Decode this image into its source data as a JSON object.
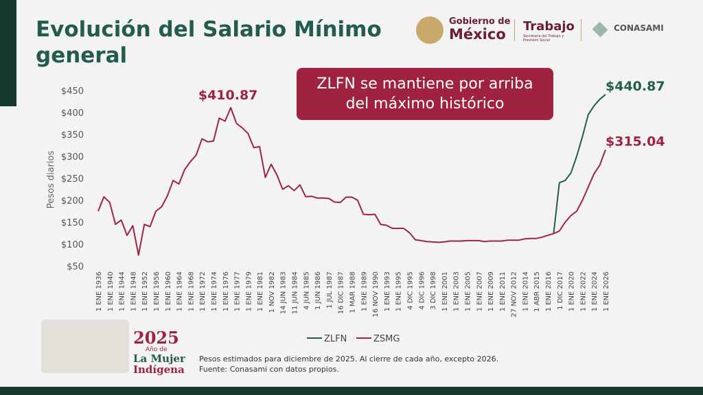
{
  "header": {
    "title": "Evolución del Salario Mínimo general",
    "logos": {
      "gobierno_small": "Gobierno de",
      "gobierno_big": "México",
      "trabajo": "Trabajo",
      "trabajo_sub": "Secretaría del Trabajo y Previsión Social",
      "conasami": "CONASAMI"
    }
  },
  "badge": {
    "year": "2025",
    "line1": "Año de",
    "line2": "La Mujer",
    "line3": "Indígena"
  },
  "footer": {
    "note": "Pesos estimados para diciembre de 2025. Al cierre de cada año, excepto 2026.",
    "source": "Fuente: Conasami con datos propios."
  },
  "chart_data": {
    "type": "line",
    "annotation": [
      "ZLFN se mantiene por arriba",
      "del máximo histórico"
    ],
    "ylabel": "Pesos diarios",
    "ylim": [
      50,
      450
    ],
    "yticks": [
      {
        "value": 50,
        "label": "$50"
      },
      {
        "value": 100,
        "label": "$100"
      },
      {
        "value": 150,
        "label": "$150"
      },
      {
        "value": 200,
        "label": "$200"
      },
      {
        "value": 250,
        "label": "$250"
      },
      {
        "value": 300,
        "label": "$300"
      },
      {
        "value": 350,
        "label": "$350"
      },
      {
        "value": 400,
        "label": "$400"
      },
      {
        "value": 450,
        "label": "$450"
      }
    ],
    "legend": "bottom",
    "categories": [
      "1 ENE 1936",
      null,
      "1 ENE 1940",
      null,
      "1 ENE 1944",
      null,
      "1 ENE 1948",
      null,
      "1 ENE 1952",
      null,
      "1 ENE 1956",
      null,
      "1 ENE 1960",
      null,
      "1 ENE 1964",
      null,
      "1 ENE 1968",
      null,
      "1 ENE 1972",
      null,
      "1 ENE 1974",
      null,
      "1 ENE 1976",
      null,
      "1 ENE 1977",
      null,
      "1 ENE 1979",
      null,
      "1 ENE 1981",
      null,
      "1 NOV 1982",
      null,
      "14 JUN 1983",
      null,
      "11 JUN 1984",
      null,
      "4 JUN 1985",
      null,
      "1 JUN 1986",
      null,
      "1 JUL 1987",
      null,
      "16 DIC 1987",
      null,
      "1 MAR 1988",
      null,
      "1 ENE 1989",
      null,
      "16 NOV 1990",
      null,
      "1 ENE 1993",
      null,
      "1 ENE 1995",
      null,
      "4 DIC 1995",
      null,
      "4 DIC 1996",
      null,
      "3 DIC 1998",
      null,
      "1 ENE 2001",
      null,
      "1 ENE 2003",
      null,
      "1 ENE 2005",
      null,
      "1 ENE 2007",
      null,
      "1 ENE 2009",
      null,
      "1 ENE 2011",
      null,
      "27 NOV 2012",
      null,
      "1 ENE 2014",
      null,
      "1 ABR 2015",
      null,
      "1 ENE 2016",
      null,
      "1 DIC 2017",
      null,
      "1 ENE 2020",
      null,
      "1 ENE 2022",
      null,
      "1 ENE 2024",
      null,
      "1 ENE 2026"
    ],
    "series": [
      {
        "name": "ZLFN",
        "color": "#235b4e",
        "values": [
          null,
          null,
          null,
          null,
          null,
          null,
          null,
          null,
          null,
          null,
          null,
          null,
          null,
          null,
          null,
          null,
          null,
          null,
          null,
          null,
          null,
          null,
          null,
          null,
          null,
          null,
          null,
          null,
          null,
          null,
          null,
          null,
          null,
          null,
          null,
          null,
          null,
          null,
          null,
          null,
          null,
          null,
          null,
          null,
          null,
          null,
          null,
          null,
          null,
          null,
          null,
          null,
          null,
          null,
          null,
          null,
          null,
          null,
          null,
          null,
          null,
          null,
          null,
          null,
          null,
          null,
          null,
          null,
          null,
          null,
          null,
          null,
          null,
          null,
          null,
          null,
          null,
          null,
          null,
          124,
          240,
          245,
          262,
          300,
          345,
          395,
          415,
          430,
          440.87
        ],
        "value_labels": [
          null,
          null,
          null,
          null,
          null,
          null,
          null,
          null,
          null,
          null,
          null,
          null,
          null,
          null,
          null,
          null,
          null,
          null,
          null,
          null,
          null,
          null,
          null,
          null,
          null,
          null,
          null,
          null,
          null,
          null,
          null,
          null,
          null,
          null,
          null,
          null,
          null,
          null,
          null,
          null,
          null,
          null,
          null,
          null,
          null,
          null,
          null,
          null,
          null,
          null,
          null,
          null,
          null,
          null,
          null,
          null,
          null,
          null,
          null,
          null,
          null,
          null,
          null,
          null,
          null,
          null,
          null,
          null,
          null,
          null,
          null,
          null,
          null,
          null,
          null,
          null,
          null,
          null,
          null,
          null,
          null,
          null,
          null,
          null,
          null,
          null,
          null,
          null,
          "$440.87"
        ]
      },
      {
        "name": "ZSMG",
        "color": "#9f2241",
        "values": [
          175,
          208,
          195,
          145,
          155,
          120,
          142,
          75,
          145,
          140,
          175,
          185,
          210,
          245,
          237,
          270,
          288,
          303,
          340,
          333,
          335,
          387,
          380,
          410.87,
          375,
          365,
          352,
          320,
          322,
          252,
          282,
          258,
          225,
          233,
          222,
          235,
          208,
          209,
          205,
          205,
          204,
          196,
          195,
          207,
          207,
          200,
          168,
          167,
          168,
          145,
          143,
          136,
          136,
          136,
          126,
          110,
          108,
          106,
          105,
          104,
          105,
          107,
          107,
          107,
          108,
          108,
          108,
          106,
          107,
          107,
          107,
          109,
          109,
          109,
          112,
          113,
          113,
          116,
          120,
          124,
          130,
          150,
          165,
          175,
          200,
          230,
          260,
          280,
          315.04
        ],
        "value_labels": [
          null,
          null,
          null,
          null,
          null,
          null,
          null,
          null,
          null,
          null,
          null,
          null,
          null,
          null,
          null,
          null,
          null,
          null,
          null,
          null,
          null,
          null,
          null,
          "$410.87",
          null,
          null,
          null,
          null,
          null,
          null,
          null,
          null,
          null,
          null,
          null,
          null,
          null,
          null,
          null,
          null,
          null,
          null,
          null,
          null,
          null,
          null,
          null,
          null,
          null,
          null,
          null,
          null,
          null,
          null,
          null,
          null,
          null,
          null,
          null,
          null,
          null,
          null,
          null,
          null,
          null,
          null,
          null,
          null,
          null,
          null,
          null,
          null,
          null,
          null,
          null,
          null,
          null,
          null,
          null,
          null,
          null,
          null,
          null,
          null,
          null,
          null,
          null,
          null,
          "$315.04"
        ]
      }
    ]
  }
}
